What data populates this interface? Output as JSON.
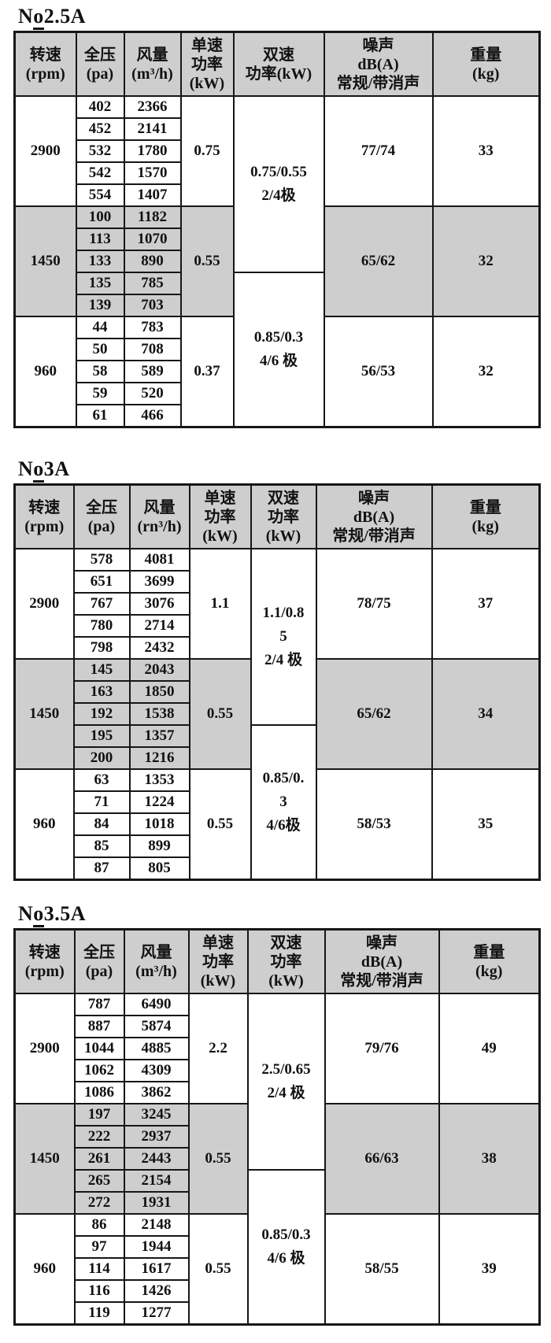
{
  "colors": {
    "header_bg": "#cecece",
    "band_bg": "#cecece",
    "border": "#161616",
    "text": "#111111",
    "page_bg": "#ffffff"
  },
  "sections": [
    {
      "title": "No2.5A",
      "title_parts": {
        "pre": "N",
        "underlined": "o",
        "rest": "2.5A"
      },
      "columns": [
        "转速\n(rpm)",
        "全压\n(pa)",
        "风量\n(m³/h)",
        "单速\n功率\n(kW)",
        "双速\n功率(kW)",
        "噪声\ndB(A)\n常规/带消声",
        "重量\n(kg)"
      ],
      "groups": [
        {
          "rpm": "2900",
          "shaded": false,
          "single_power": "0.75",
          "noise": "77/74",
          "weight": "33",
          "rows": [
            [
              "402",
              "2366"
            ],
            [
              "452",
              "2141"
            ],
            [
              "532",
              "1780"
            ],
            [
              "542",
              "1570"
            ],
            [
              "554",
              "1407"
            ]
          ]
        },
        {
          "rpm": "1450",
          "shaded": true,
          "single_power": "0.55",
          "noise": "65/62",
          "weight": "32",
          "rows": [
            [
              "100",
              "1182"
            ],
            [
              "113",
              "1070"
            ],
            [
              "133",
              "890"
            ],
            [
              "135",
              "785"
            ],
            [
              "139",
              "703"
            ]
          ]
        },
        {
          "rpm": "960",
          "shaded": false,
          "single_power": "0.37",
          "noise": "56/53",
          "weight": "32",
          "rows": [
            [
              "44",
              "783"
            ],
            [
              "50",
              "708"
            ],
            [
              "58",
              "589"
            ],
            [
              "59",
              "520"
            ],
            [
              "61",
              "466"
            ]
          ]
        }
      ],
      "dual_cells": [
        {
          "rows": 8,
          "text": "0.75/0.55\n2/4极"
        },
        {
          "rows": 7,
          "text": "0.85/0.3\n4/6 极"
        }
      ]
    },
    {
      "title": "No3A",
      "title_parts": {
        "pre": "N",
        "underlined": "o",
        "rest": "3A"
      },
      "columns": [
        "转速\n(rpm)",
        "全压\n(pa)",
        "风量\n(rn³/h)",
        "单速\n功率\n(kW)",
        "双速\n功率\n(kW)",
        "噪声\ndB(A)\n常规/带消声",
        "重量\n(kg)"
      ],
      "groups": [
        {
          "rpm": "2900",
          "shaded": false,
          "single_power": "1.1",
          "noise": "78/75",
          "weight": "37",
          "rows": [
            [
              "578",
              "4081"
            ],
            [
              "651",
              "3699"
            ],
            [
              "767",
              "3076"
            ],
            [
              "780",
              "2714"
            ],
            [
              "798",
              "2432"
            ]
          ]
        },
        {
          "rpm": "1450",
          "shaded": true,
          "single_power": "0.55",
          "noise": "65/62",
          "weight": "34",
          "rows": [
            [
              "145",
              "2043"
            ],
            [
              "163",
              "1850"
            ],
            [
              "192",
              "1538"
            ],
            [
              "195",
              "1357"
            ],
            [
              "200",
              "1216"
            ]
          ]
        },
        {
          "rpm": "960",
          "shaded": false,
          "single_power": "0.55",
          "noise": "58/53",
          "weight": "35",
          "rows": [
            [
              "63",
              "1353"
            ],
            [
              "71",
              "1224"
            ],
            [
              "84",
              "1018"
            ],
            [
              "85",
              "899"
            ],
            [
              "87",
              "805"
            ]
          ]
        }
      ],
      "dual_cells": [
        {
          "rows": 8,
          "text": "1.1/0.8\n5\n2/4 极"
        },
        {
          "rows": 7,
          "text": "0.85/0.\n3\n4/6极"
        }
      ]
    },
    {
      "title": "No3.5A",
      "title_parts": {
        "pre": "N",
        "underlined": "o",
        "rest": "3.5A"
      },
      "columns": [
        "转速\n(rpm)",
        "全压\n(pa)",
        "风量\n(m³/h)",
        "单速\n功率\n(kW)",
        "双速\n功率\n(kW)",
        "噪声\ndB(A)\n常规/带消声",
        "重量\n(kg)"
      ],
      "groups": [
        {
          "rpm": "2900",
          "shaded": false,
          "single_power": "2.2",
          "noise": "79/76",
          "weight": "49",
          "rows": [
            [
              "787",
              "6490"
            ],
            [
              "887",
              "5874"
            ],
            [
              "1044",
              "4885"
            ],
            [
              "1062",
              "4309"
            ],
            [
              "1086",
              "3862"
            ]
          ]
        },
        {
          "rpm": "1450",
          "shaded": true,
          "single_power": "0.55",
          "noise": "66/63",
          "weight": "38",
          "rows": [
            [
              "197",
              "3245"
            ],
            [
              "222",
              "2937"
            ],
            [
              "261",
              "2443"
            ],
            [
              "265",
              "2154"
            ],
            [
              "272",
              "1931"
            ]
          ]
        },
        {
          "rpm": "960",
          "shaded": false,
          "single_power": "0.55",
          "noise": "58/55",
          "weight": "39",
          "rows": [
            [
              "86",
              "2148"
            ],
            [
              "97",
              "1944"
            ],
            [
              "114",
              "1617"
            ],
            [
              "116",
              "1426"
            ],
            [
              "119",
              "1277"
            ]
          ]
        }
      ],
      "dual_cells": [
        {
          "rows": 8,
          "text": "2.5/0.65\n2/4 极"
        },
        {
          "rows": 7,
          "text": "0.85/0.3\n4/6 极"
        }
      ]
    }
  ]
}
